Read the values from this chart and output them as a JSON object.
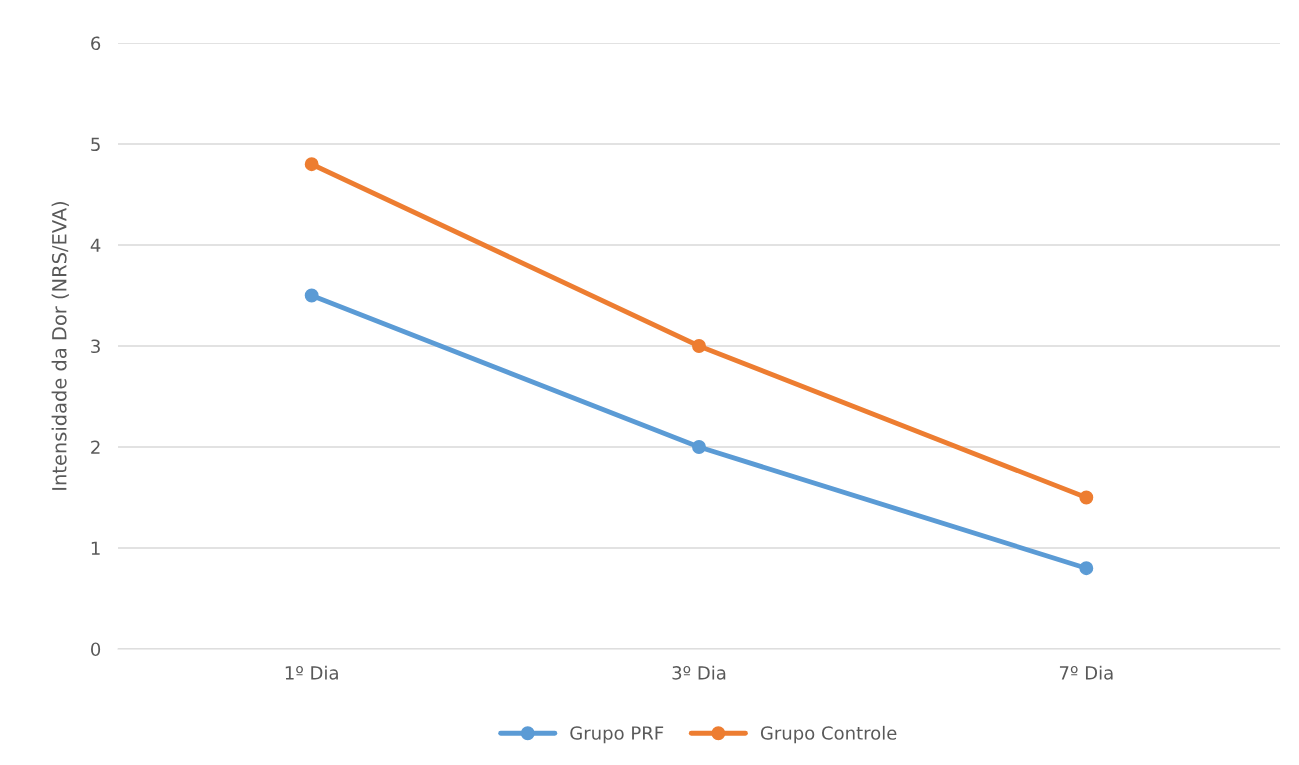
{
  "chart_data": {
    "type": "line",
    "ylabel": "Intensidade da Dor (NRS/EVA)",
    "categories": [
      "1º Dia",
      "3º Dia",
      "7º Dia"
    ],
    "series": [
      {
        "name": "Grupo PRF",
        "color": "#5b9bd5",
        "values": [
          3.5,
          2.0,
          0.8
        ]
      },
      {
        "name": "Grupo Controle",
        "color": "#ed7d31",
        "values": [
          4.8,
          3.0,
          1.5
        ]
      }
    ],
    "ylim": [
      0,
      6
    ],
    "yticks": [
      0,
      1,
      2,
      3,
      4,
      5,
      6
    ],
    "grid": "y",
    "legend": "bottom",
    "marker": "circle",
    "line_style": "solid"
  }
}
